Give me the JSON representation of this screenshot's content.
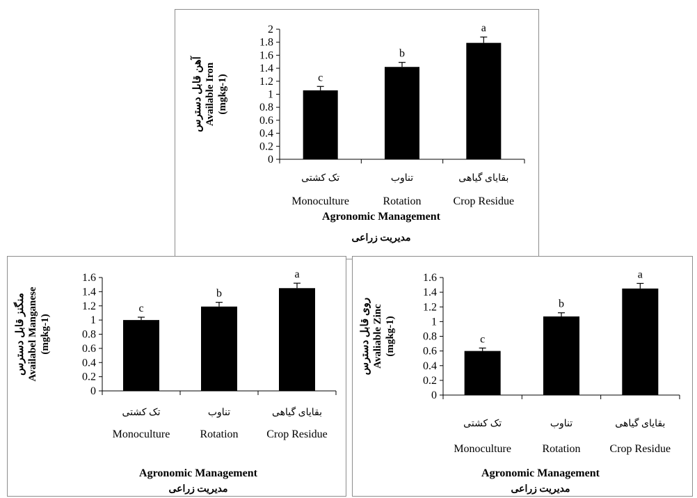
{
  "charts": [
    {
      "id": "iron",
      "type": "bar",
      "categories_fa": [
        "تک کشتی",
        "تناوب",
        "بقایای گیاهی"
      ],
      "categories_en": [
        "Monoculture",
        "Rotation",
        "Crop Residue"
      ],
      "values": [
        1.06,
        1.42,
        1.79
      ],
      "errors": [
        0.06,
        0.07,
        0.09
      ],
      "letters": [
        "c",
        "b",
        "a"
      ],
      "ylim": [
        0,
        2
      ],
      "yticks": [
        "0",
        "0.2",
        "0.4",
        "0.6",
        "0.8",
        "1",
        "1.2",
        "1.4",
        "1.6",
        "1.8",
        "2"
      ],
      "xlabel": "Agronomic Management",
      "xlabel_fa": "مدیریت زراعی",
      "ylabel_fa": "آهن قابل دسترس",
      "ylabel_en": "Available Iron",
      "ylabel_unit": "(mgkg-1)",
      "bar_color": "#000000",
      "grid": false
    },
    {
      "id": "manganese",
      "type": "bar",
      "categories_fa": [
        "تک کشتی",
        "تناوب",
        "بقایای گیاهی"
      ],
      "categories_en": [
        "Monoculture",
        "Rotation",
        "Crop Residue"
      ],
      "values": [
        1.0,
        1.19,
        1.45
      ],
      "errors": [
        0.04,
        0.06,
        0.07
      ],
      "letters": [
        "c",
        "b",
        "a"
      ],
      "ylim": [
        0,
        1.6
      ],
      "yticks": [
        "0",
        "0.2",
        "0.4",
        "0.6",
        "0.8",
        "1",
        "1.2",
        "1.4",
        "1.6"
      ],
      "xlabel": "Agronomic Management",
      "xlabel_fa": "مدیریت زراعی",
      "ylabel_fa": "منگنز قابل دسترس",
      "ylabel_en": "Availabel Manganese",
      "ylabel_unit": "(mgkg-1)",
      "bar_color": "#000000",
      "grid": false
    },
    {
      "id": "zinc",
      "type": "bar",
      "categories_fa": [
        "تک کشتی",
        "تناوب",
        "بقایای گیاهی"
      ],
      "categories_en": [
        "Monoculture",
        "Rotation",
        "Crop Residue"
      ],
      "values": [
        0.6,
        1.07,
        1.45
      ],
      "errors": [
        0.04,
        0.05,
        0.07
      ],
      "letters": [
        "c",
        "b",
        "a"
      ],
      "ylim": [
        0,
        1.6
      ],
      "yticks": [
        "0",
        "0.2",
        "0.4",
        "0.6",
        "0.8",
        "1",
        "1.2",
        "1.4",
        "1.6"
      ],
      "xlabel": "Agronomic Management",
      "xlabel_fa": "مدیریت زراعی",
      "ylabel_fa": "روی قابل دسترس",
      "ylabel_en": "Avaliable Zinc",
      "ylabel_unit": "(mgkg-1)",
      "bar_color": "#000000",
      "grid": false
    }
  ]
}
